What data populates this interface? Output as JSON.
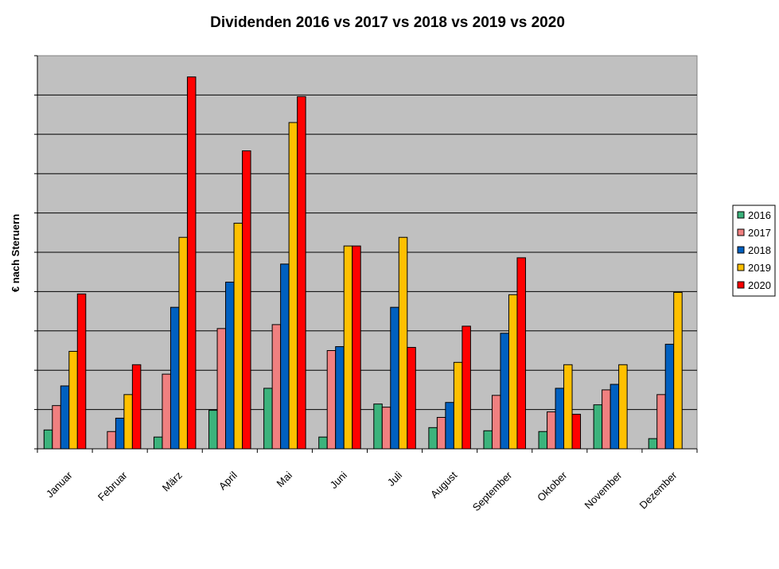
{
  "chart_data": {
    "type": "bar",
    "title": "Dividenden 2016 vs 2017 vs 2018 vs 2019 vs 2020",
    "xlabel": "",
    "ylabel": "€ nach Steruern",
    "categories": [
      "Januar",
      "Februar",
      "März",
      "April",
      "Mai",
      "Juni",
      "Juli",
      "August",
      "September",
      "Oktober",
      "November",
      "Dezember"
    ],
    "ylim": [
      0,
      10
    ],
    "grid": true,
    "y_tick_labels_shown": false,
    "legend_position": "right",
    "series": [
      {
        "name": "2016",
        "color": "#3cb37c",
        "values": [
          0.48,
          0,
          0.3,
          0.98,
          1.54,
          0.3,
          1.14,
          0.54,
          0.46,
          0.44,
          1.12,
          0.26
        ]
      },
      {
        "name": "2017",
        "color": "#f08080",
        "values": [
          1.1,
          0.44,
          1.9,
          3.06,
          3.16,
          2.5,
          1.06,
          0.8,
          1.36,
          0.94,
          1.5,
          1.38
        ]
      },
      {
        "name": "2018",
        "color": "#0060c0",
        "values": [
          1.6,
          0.78,
          3.6,
          4.24,
          4.7,
          2.6,
          3.6,
          1.18,
          2.94,
          1.54,
          1.64,
          2.66
        ]
      },
      {
        "name": "2019",
        "color": "#ffc000",
        "values": [
          2.48,
          1.38,
          5.38,
          5.74,
          8.3,
          5.16,
          5.38,
          2.2,
          3.92,
          2.14,
          2.14,
          3.98
        ]
      },
      {
        "name": "2020",
        "color": "#ff0000",
        "values": [
          3.94,
          2.14,
          9.46,
          7.58,
          8.96,
          5.16,
          2.58,
          3.12,
          4.86,
          0.88,
          0,
          0
        ]
      }
    ]
  }
}
